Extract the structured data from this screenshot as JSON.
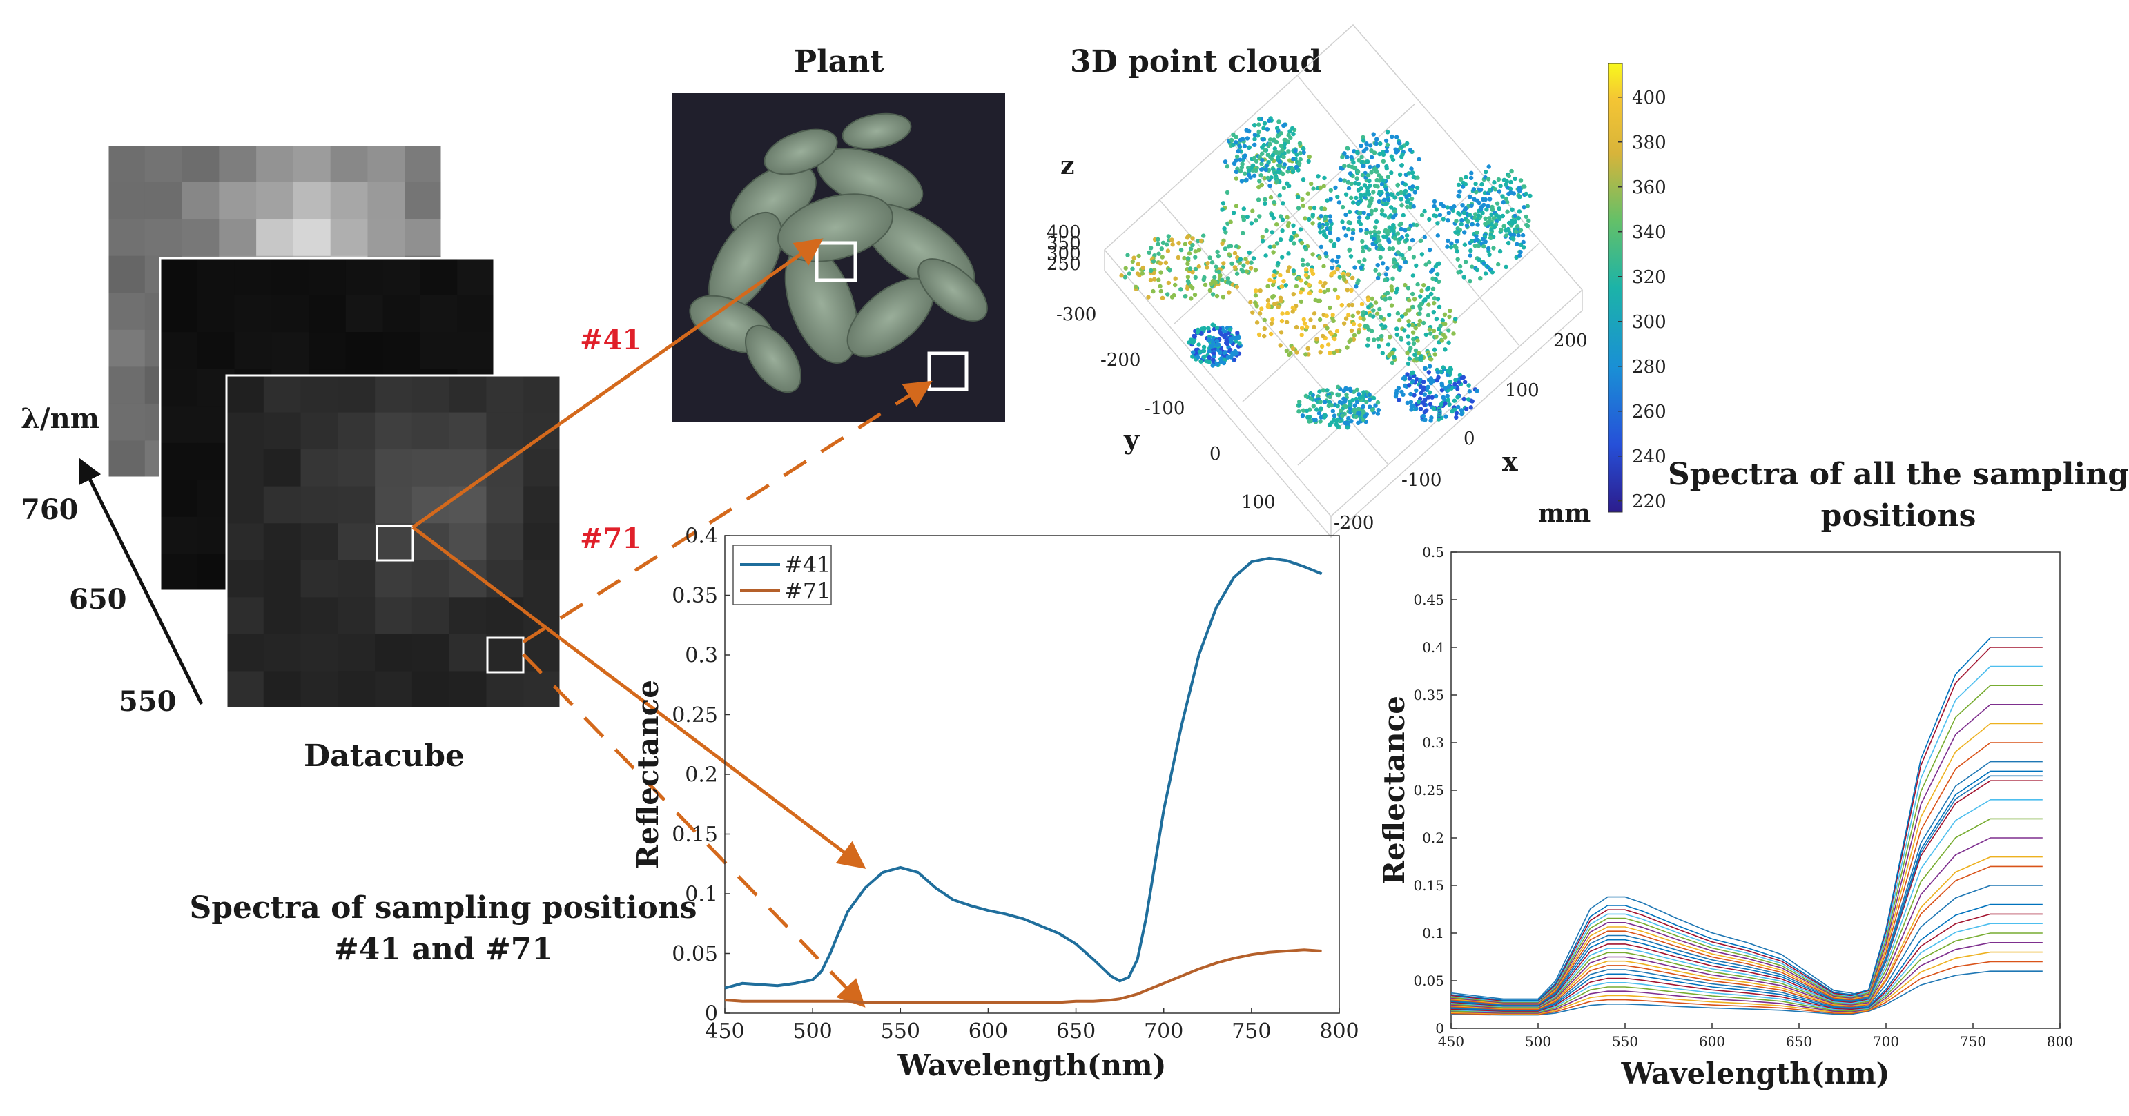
{
  "figure": {
    "datacube": {
      "title": "Datacube",
      "axis_label": "λ/nm",
      "ticks": [
        "760",
        "650",
        "550"
      ]
    },
    "plant": {
      "title": "Plant"
    },
    "point_cloud": {
      "title": "3D point cloud",
      "x_label": "x",
      "y_label": "y",
      "z_label": "z",
      "unit": "mm",
      "x_ticks": [
        "-200",
        "-100",
        "0",
        "100",
        "200"
      ],
      "y_ticks": [
        "-300",
        "-200",
        "-100",
        "0",
        "100"
      ],
      "z_ticks": [
        "400",
        "350",
        "300",
        "250"
      ],
      "colorbar_ticks": [
        "400",
        "380",
        "360",
        "340",
        "320",
        "300",
        "280",
        "260",
        "240",
        "220"
      ],
      "colorbar_range": [
        215,
        415
      ]
    },
    "arrow_labels": {
      "p41": "#41",
      "p71": "#71"
    },
    "caption_left": {
      "line1": "Spectra of sampling positions",
      "line2": "#41 and #71"
    },
    "caption_right": {
      "line1": "Spectra of all the sampling",
      "line2": "positions"
    }
  },
  "chart_data": [
    {
      "type": "line",
      "title": "",
      "xlabel": "Wavelength(nm)",
      "ylabel": "Reflectance",
      "xlim": [
        450,
        800
      ],
      "ylim": [
        0,
        0.4
      ],
      "x_ticks": [
        450,
        500,
        550,
        600,
        650,
        700,
        750,
        800
      ],
      "y_ticks": [
        0,
        0.05,
        0.1,
        0.15,
        0.2,
        0.25,
        0.3,
        0.35,
        0.4
      ],
      "x_tick_labels": [
        "450",
        "500",
        "550",
        "600",
        "650",
        "700",
        "750",
        "800"
      ],
      "y_tick_labels": [
        "0",
        "0.05",
        "0.1",
        "0.15",
        "0.2",
        "0.25",
        "0.3",
        "0.35",
        "0.4"
      ],
      "legend": "top-left",
      "x": [
        450,
        460,
        470,
        480,
        490,
        500,
        505,
        510,
        515,
        520,
        530,
        540,
        550,
        560,
        570,
        580,
        590,
        600,
        610,
        620,
        630,
        640,
        650,
        660,
        670,
        675,
        680,
        685,
        690,
        695,
        700,
        710,
        720,
        730,
        740,
        750,
        760,
        770,
        780,
        790
      ],
      "series": [
        {
          "name": "#41",
          "color": "#1f6e9c",
          "values": [
            0.021,
            0.025,
            0.024,
            0.023,
            0.025,
            0.028,
            0.035,
            0.05,
            0.068,
            0.085,
            0.105,
            0.118,
            0.122,
            0.118,
            0.105,
            0.095,
            0.09,
            0.086,
            0.083,
            0.079,
            0.073,
            0.067,
            0.058,
            0.045,
            0.031,
            0.027,
            0.03,
            0.045,
            0.08,
            0.125,
            0.17,
            0.24,
            0.3,
            0.34,
            0.365,
            0.378,
            0.381,
            0.379,
            0.374,
            0.368
          ]
        },
        {
          "name": "#71",
          "color": "#b5602a",
          "values": [
            0.011,
            0.01,
            0.01,
            0.01,
            0.01,
            0.01,
            0.01,
            0.01,
            0.01,
            0.01,
            0.009,
            0.009,
            0.009,
            0.009,
            0.009,
            0.009,
            0.009,
            0.009,
            0.009,
            0.009,
            0.009,
            0.009,
            0.01,
            0.01,
            0.011,
            0.012,
            0.014,
            0.016,
            0.019,
            0.022,
            0.025,
            0.031,
            0.037,
            0.042,
            0.046,
            0.049,
            0.051,
            0.052,
            0.053,
            0.052
          ]
        }
      ]
    },
    {
      "type": "line",
      "title": "",
      "xlabel": "Wavelength(nm)",
      "ylabel": "Reflectance",
      "xlim": [
        450,
        800
      ],
      "ylim": [
        0,
        0.5
      ],
      "x_ticks": [
        450,
        500,
        550,
        600,
        650,
        700,
        750,
        800
      ],
      "y_ticks": [
        0,
        0.05,
        0.1,
        0.15,
        0.2,
        0.25,
        0.3,
        0.35,
        0.4,
        0.45,
        0.5
      ],
      "x_tick_labels": [
        "450",
        "500",
        "550",
        "600",
        "650",
        "700",
        "750",
        "800"
      ],
      "y_tick_labels": [
        "0",
        "0.05",
        "0.1",
        "0.15",
        "0.2",
        "0.25",
        "0.3",
        "0.35",
        "0.4",
        "0.45",
        "0.5"
      ],
      "note": "Many spectra, one per sampling position; curves share the shape below scaled by green-peak and NIR-plateau values.",
      "shape_x": [
        450,
        480,
        500,
        510,
        520,
        530,
        540,
        550,
        560,
        580,
        600,
        620,
        640,
        660,
        670,
        680,
        690,
        700,
        710,
        720,
        740,
        760,
        790
      ],
      "green_peaks": [
        0.015,
        0.02,
        0.025,
        0.03,
        0.035,
        0.04,
        0.045,
        0.05,
        0.055,
        0.06,
        0.065,
        0.07,
        0.075,
        0.08,
        0.085,
        0.09,
        0.095,
        0.1,
        0.105,
        0.11,
        0.115,
        0.12,
        0.125,
        0.13,
        0.14
      ],
      "nir_plateaus": [
        0.06,
        0.07,
        0.08,
        0.09,
        0.1,
        0.11,
        0.12,
        0.13,
        0.15,
        0.17,
        0.18,
        0.2,
        0.22,
        0.24,
        0.26,
        0.27,
        0.28,
        0.3,
        0.32,
        0.34,
        0.36,
        0.38,
        0.4,
        0.41,
        0.265
      ],
      "colors": [
        "#1f77b4",
        "#d95319",
        "#edb120",
        "#7e2f8e",
        "#77ac30",
        "#4dbeee",
        "#a2142f",
        "#0072bd"
      ]
    }
  ]
}
